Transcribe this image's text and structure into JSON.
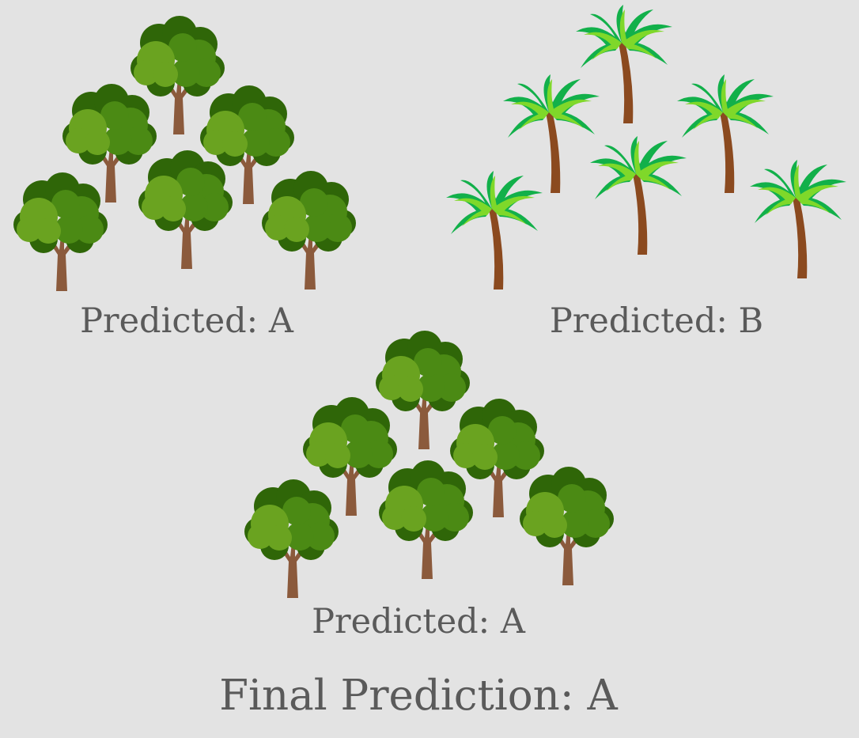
{
  "groups": [
    {
      "tree_icon": "oak-tree-icon",
      "caption": "Predicted: A"
    },
    {
      "tree_icon": "palm-tree-icon",
      "caption": "Predicted: B"
    },
    {
      "tree_icon": "oak-tree-icon",
      "caption": "Predicted: A"
    }
  ],
  "final_prediction": "Final Prediction: A",
  "colors": {
    "background": "#e3e3e3",
    "text": "#5a5a5a",
    "oak_dark": "#2f6608",
    "oak_mid": "#4b8a14",
    "oak_light": "#6aa320",
    "trunk": "#8b5a3c",
    "palm_dark": "#12b04a",
    "palm_light": "#7fd82a"
  }
}
